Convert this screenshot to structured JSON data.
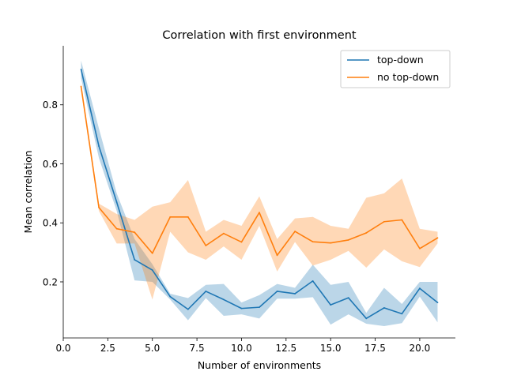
{
  "chart_data": {
    "type": "line",
    "title": "Correlation with first environment",
    "xlabel": "Number of environments",
    "ylabel": "Mean correlation",
    "xlim": [
      0,
      22
    ],
    "ylim": [
      0.01,
      1.0
    ],
    "x_ticks": [
      "0.0",
      "2.5",
      "5.0",
      "7.5",
      "10.0",
      "12.5",
      "15.0",
      "17.5",
      "20.0"
    ],
    "y_ticks": [
      "0.2",
      "0.4",
      "0.6",
      "0.8"
    ],
    "grid": false,
    "legend_position": "top-right",
    "x": [
      1,
      2,
      3,
      4,
      5,
      6,
      7,
      8,
      9,
      10,
      11,
      12,
      13,
      14,
      15,
      16,
      17,
      18,
      19,
      20,
      21
    ],
    "series": [
      {
        "name": "top-down",
        "color": "#1f77b4",
        "values": [
          0.92,
          0.66,
          0.47,
          0.275,
          0.24,
          0.15,
          0.107,
          0.168,
          0.14,
          0.11,
          0.114,
          0.168,
          0.16,
          0.203,
          0.122,
          0.146,
          0.076,
          0.112,
          0.092,
          0.178,
          0.13
        ],
        "lower": [
          0.89,
          0.62,
          0.44,
          0.205,
          0.2,
          0.14,
          0.07,
          0.145,
          0.085,
          0.09,
          0.076,
          0.143,
          0.143,
          0.148,
          0.055,
          0.09,
          0.058,
          0.05,
          0.06,
          0.15,
          0.063
        ],
        "upper": [
          0.95,
          0.72,
          0.5,
          0.345,
          0.26,
          0.16,
          0.145,
          0.19,
          0.193,
          0.13,
          0.155,
          0.193,
          0.18,
          0.258,
          0.19,
          0.2,
          0.095,
          0.18,
          0.125,
          0.2,
          0.2
        ]
      },
      {
        "name": "no top-down",
        "color": "#ff7f0e",
        "values": [
          0.862,
          0.452,
          0.38,
          0.368,
          0.297,
          0.42,
          0.42,
          0.323,
          0.364,
          0.335,
          0.435,
          0.29,
          0.371,
          0.336,
          0.332,
          0.342,
          0.366,
          0.404,
          0.41,
          0.313,
          0.349
        ],
        "lower": [
          0.85,
          0.44,
          0.33,
          0.33,
          0.14,
          0.37,
          0.3,
          0.275,
          0.32,
          0.275,
          0.39,
          0.235,
          0.335,
          0.255,
          0.275,
          0.305,
          0.248,
          0.31,
          0.27,
          0.25,
          0.33
        ],
        "upper": [
          0.875,
          0.465,
          0.43,
          0.41,
          0.455,
          0.47,
          0.545,
          0.37,
          0.41,
          0.39,
          0.49,
          0.345,
          0.415,
          0.42,
          0.39,
          0.38,
          0.485,
          0.5,
          0.55,
          0.38,
          0.37
        ]
      }
    ]
  }
}
